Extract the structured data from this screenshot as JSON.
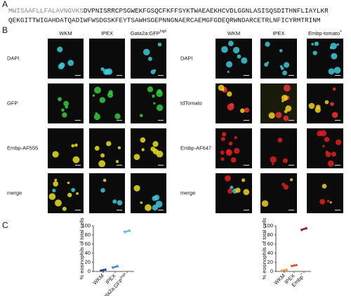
{
  "panel_labels": [
    "A",
    "B",
    "C"
  ],
  "sequence": {
    "signal_peptide": "MWISAAFLLFALAVNGVKS",
    "line1_rest": "DVPNISRRCPSGWEKFGSQCFKFFSYKTWAEAEKHCVDLGGNLASISQSDITHNFLIAYLKR",
    "line2": "QEKGITTWIGAHDATQADIWFWSDGSKFEYTSAWHSGEPNNGNAERCAEMGFGDEQRWNDARCETRLNFICYRMTRINM"
  },
  "panel_b": {
    "left": {
      "columns": [
        "WKM",
        "IPEX",
        {
          "text": "Gata2a:GFP",
          "sup": "high"
        }
      ],
      "rows": [
        "DAPI",
        "GFP",
        "Embp-AF555",
        "merge"
      ]
    },
    "right": {
      "columns": [
        "WKM",
        "IPEX",
        {
          "text": "Embp-tomato",
          "sup": "+"
        }
      ],
      "rows": [
        "DAPI",
        "tdTomato",
        "Embp-AF647",
        "merge"
      ]
    }
  },
  "chart_data": [
    {
      "type": "strip",
      "y_label": "% eosinophils of total cells",
      "categories": [
        "WKM",
        "IPEX",
        {
          "text": "Gata2a:GFP",
          "sup": "high"
        }
      ],
      "values": [
        [
          2,
          3,
          4
        ],
        [
          8,
          10,
          12
        ],
        [
          86,
          88,
          90
        ]
      ],
      "means": [
        3,
        10,
        88
      ],
      "colors": [
        "#1f3a93",
        "#4a8fd1",
        "#5ec8e6"
      ],
      "ylim": [
        0,
        100
      ],
      "yticks": [
        0,
        20,
        40,
        60,
        80,
        100
      ]
    },
    {
      "type": "strip",
      "y_label": "% eosinophils of total cells",
      "categories": [
        "WKM",
        "IPEX",
        {
          "text": "Embp",
          "sup": "+"
        }
      ],
      "values": [
        [
          2,
          3,
          4
        ],
        [
          12,
          13,
          14
        ],
        [
          91,
          93,
          95
        ]
      ],
      "means": [
        3,
        13,
        93
      ],
      "colors": [
        "#f0a030",
        "#e2452a",
        "#8b1a1a"
      ],
      "ylim": [
        0,
        100
      ],
      "yticks": [
        0,
        20,
        40,
        60,
        80,
        100
      ]
    }
  ]
}
